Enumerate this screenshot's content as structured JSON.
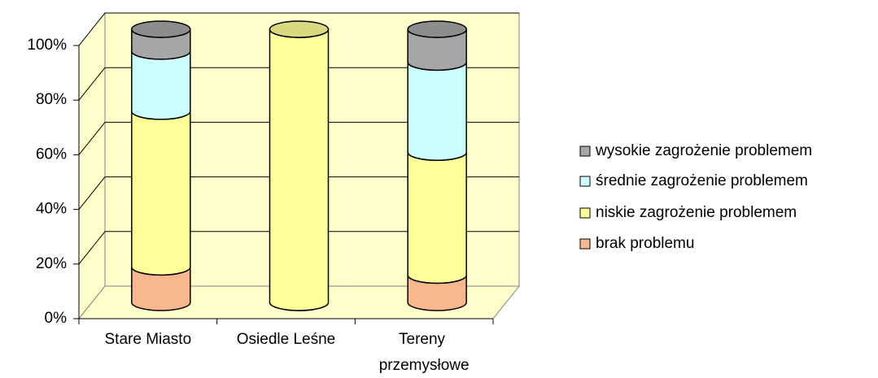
{
  "chart_data": {
    "type": "stacked_cylinder",
    "categories": [
      "Stare Miasto",
      "Osiedle Leśne",
      "Tereny przemysłowe"
    ],
    "series": [
      {
        "name": "brak problemu",
        "color": "#f8b78c",
        "values": [
          13,
          0,
          10
        ]
      },
      {
        "name": "niskie zagrożenie problemem",
        "color": "#ffff99",
        "values": [
          57,
          100,
          45
        ]
      },
      {
        "name": "średnie zagrożenie problemem",
        "color": "#ccffff",
        "values": [
          22,
          0,
          33
        ]
      },
      {
        "name": "wysokie zagrożenie problemem",
        "color": "#a6a6a6",
        "values": [
          8,
          0,
          12
        ]
      }
    ],
    "ylim": [
      0,
      100
    ],
    "yticks": [
      {
        "value": 0,
        "label": "0%"
      },
      {
        "value": 20,
        "label": "20%"
      },
      {
        "value": 40,
        "label": "40%"
      },
      {
        "value": 60,
        "label": "60%"
      },
      {
        "value": 80,
        "label": "80%"
      },
      {
        "value": 100,
        "label": "100%"
      }
    ],
    "grid": true
  }
}
